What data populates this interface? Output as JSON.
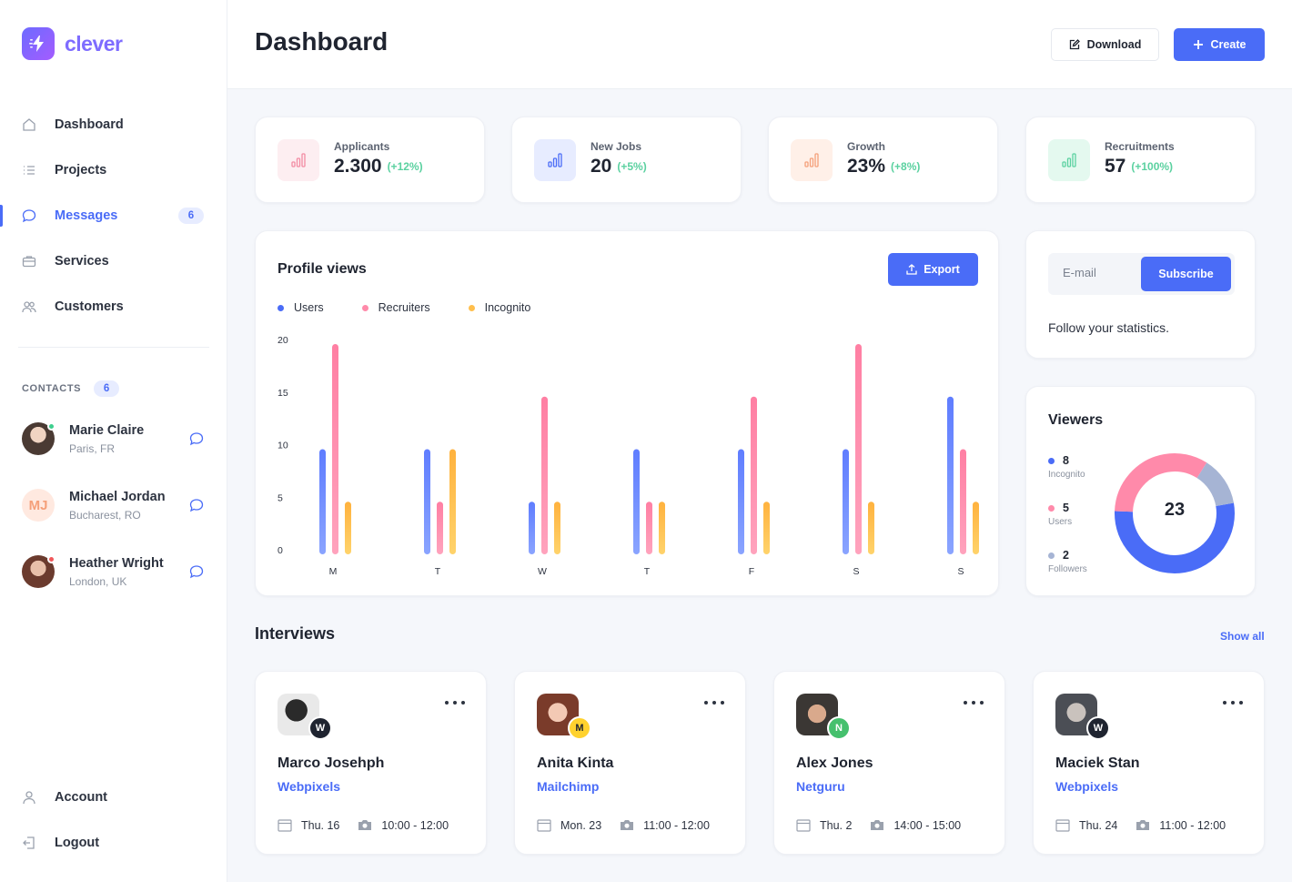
{
  "brand": {
    "name": "clever"
  },
  "sidebar": {
    "nav": [
      {
        "label": "Dashboard",
        "icon": "home-icon"
      },
      {
        "label": "Projects",
        "icon": "list-icon"
      },
      {
        "label": "Messages",
        "icon": "chat-icon",
        "badge": "6",
        "active": true
      },
      {
        "label": "Services",
        "icon": "briefcase-icon"
      },
      {
        "label": "Customers",
        "icon": "users-icon"
      }
    ],
    "contacts_title": "CONTACTS",
    "contacts_count": "6",
    "contacts": [
      {
        "name": "Marie Claire",
        "location": "Paris, FR",
        "status_color": "#3ecf8e"
      },
      {
        "name": "Michael Jordan",
        "location": "Bucharest, RO",
        "initials": "MJ"
      },
      {
        "name": "Heather Wright",
        "location": "London, UK",
        "status_color": "#f1575a"
      }
    ],
    "bottom": [
      {
        "label": "Account",
        "icon": "user-icon"
      },
      {
        "label": "Logout",
        "icon": "logout-icon"
      }
    ]
  },
  "header": {
    "title": "Dashboard",
    "download_label": "Download",
    "create_label": "Create"
  },
  "stats": [
    {
      "label": "Applicants",
      "value": "2.300",
      "delta": "(+12%)",
      "bg": "#fdeef1",
      "color": "#f38ca3"
    },
    {
      "label": "New Jobs",
      "value": "20",
      "delta": "(+5%)",
      "bg": "#e7ecff",
      "color": "#4a6cf7"
    },
    {
      "label": "Growth",
      "value": "23%",
      "delta": "(+8%)",
      "bg": "#fff0e8",
      "color": "#f5a07a"
    },
    {
      "label": "Recruitments",
      "value": "57",
      "delta": "(+100%)",
      "bg": "#e4f9ef",
      "color": "#5bd1a0"
    }
  ],
  "profile_views": {
    "title": "Profile views",
    "export_label": "Export"
  },
  "chart_data": {
    "type": "bar",
    "categories": [
      "M",
      "T",
      "W",
      "T",
      "F",
      "S",
      "S"
    ],
    "series": [
      {
        "name": "Users",
        "color": "#6b8cff",
        "values": [
          10,
          10,
          5,
          10,
          10,
          10,
          15
        ]
      },
      {
        "name": "Recruiters",
        "color": "#ff8aaa",
        "values": [
          20,
          5,
          15,
          5,
          15,
          20,
          10
        ]
      },
      {
        "name": "Incognito",
        "color": "#ffbf4d",
        "values": [
          5,
          10,
          5,
          5,
          5,
          5,
          5
        ]
      }
    ],
    "yticks": [
      "0",
      "5",
      "10",
      "15",
      "20"
    ],
    "ylim": [
      0,
      20
    ]
  },
  "subscribe": {
    "placeholder": "E-mail",
    "button_label": "Subscribe",
    "text": "Follow your statistics."
  },
  "viewers": {
    "title": "Viewers",
    "total": "23",
    "items": [
      {
        "value": "8",
        "label": "Incognito",
        "color": "#4a6cf7"
      },
      {
        "value": "5",
        "label": "Users",
        "color": "#ff8aaa"
      },
      {
        "value": "2",
        "label": "Followers",
        "color": "#a6b4d4"
      }
    ]
  },
  "interviews": {
    "title": "Interviews",
    "show_all": "Show all",
    "items": [
      {
        "name": "Marco Josehph",
        "company": "Webpixels",
        "date": "Thu. 16",
        "time": "10:00 - 12:00",
        "badge": "W",
        "badge_color": "#1f2430"
      },
      {
        "name": "Anita Kinta",
        "company": "Mailchimp",
        "date": "Mon. 23",
        "time": "11:00 - 12:00",
        "badge": "M",
        "badge_color": "#ffd22e"
      },
      {
        "name": "Alex Jones",
        "company": "Netguru",
        "date": "Thu. 2",
        "time": "14:00 - 15:00",
        "badge": "N",
        "badge_color": "#45c06d"
      },
      {
        "name": "Maciek Stan",
        "company": "Webpixels",
        "date": "Thu. 24",
        "time": "11:00 - 12:00",
        "badge": "W",
        "badge_color": "#1f2430"
      }
    ]
  }
}
